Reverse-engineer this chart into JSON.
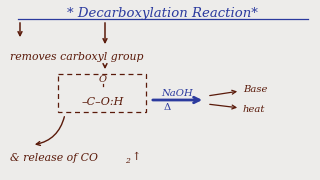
{
  "bg_color": "#edecea",
  "title": "* Decarboxylation Reaction*",
  "title_color": "#2b3a9e",
  "title_fontsize": 9.5,
  "dark_red": "#5a1a0a",
  "blue": "#2b3a9e",
  "text1": "removes carboxyl group",
  "naoh_label": "NaOH",
  "delta_label": "Δ",
  "base_label": "Base",
  "heat_label": "heat",
  "release_text": "& release of CO",
  "sub2": "2",
  "uparrow": "↑"
}
